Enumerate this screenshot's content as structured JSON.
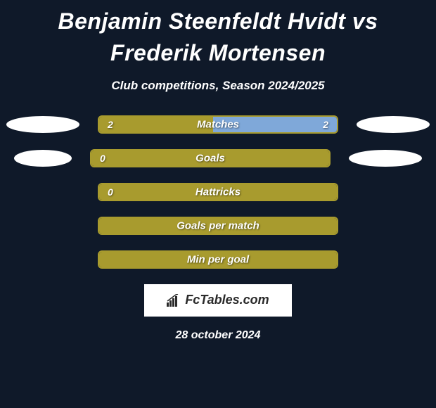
{
  "title": "Benjamin Steenfeldt Hvidt vs Frederik Mortensen",
  "subtitle": "Club competitions, Season 2024/2025",
  "date": "28 october 2024",
  "logo_text": "FcTables.com",
  "colors": {
    "background": "#0f1929",
    "bar_border": "#a89b2e",
    "bar_fill": "#a89b2e",
    "bar_alt_fill": "#7fa8d9",
    "text": "#ffffff",
    "pill": "#ffffff"
  },
  "stats": [
    {
      "label": "Matches",
      "left_value": "2",
      "right_value": "2",
      "left_fill_pct": 48,
      "right_fill_pct": 52,
      "left_fill_color": "#a89b2e",
      "right_fill_color": "#7fa8d9",
      "has_left_pill": true,
      "has_right_pill": true,
      "show_left_val": true,
      "show_right_val": true,
      "left_pill_w": 104,
      "right_pill_w": 104
    },
    {
      "label": "Goals",
      "left_value": "0",
      "right_value": "",
      "left_fill_pct": 0,
      "right_fill_pct": 100,
      "left_fill_color": "#a89b2e",
      "right_fill_color": "#a89b2e",
      "has_left_pill": true,
      "has_right_pill": true,
      "show_left_val": true,
      "show_right_val": false,
      "left_pill_w": 82,
      "right_pill_w": 104
    },
    {
      "label": "Hattricks",
      "left_value": "0",
      "right_value": "",
      "left_fill_pct": 0,
      "right_fill_pct": 100,
      "left_fill_color": "#a89b2e",
      "right_fill_color": "#a89b2e",
      "has_left_pill": false,
      "has_right_pill": false,
      "show_left_val": true,
      "show_right_val": false
    },
    {
      "label": "Goals per match",
      "left_value": "",
      "right_value": "",
      "left_fill_pct": 0,
      "right_fill_pct": 100,
      "left_fill_color": "#a89b2e",
      "right_fill_color": "#a89b2e",
      "has_left_pill": false,
      "has_right_pill": false,
      "show_left_val": false,
      "show_right_val": false
    },
    {
      "label": "Min per goal",
      "left_value": "",
      "right_value": "",
      "left_fill_pct": 0,
      "right_fill_pct": 100,
      "left_fill_color": "#a89b2e",
      "right_fill_color": "#a89b2e",
      "has_left_pill": false,
      "has_right_pill": false,
      "show_left_val": false,
      "show_right_val": false
    }
  ]
}
